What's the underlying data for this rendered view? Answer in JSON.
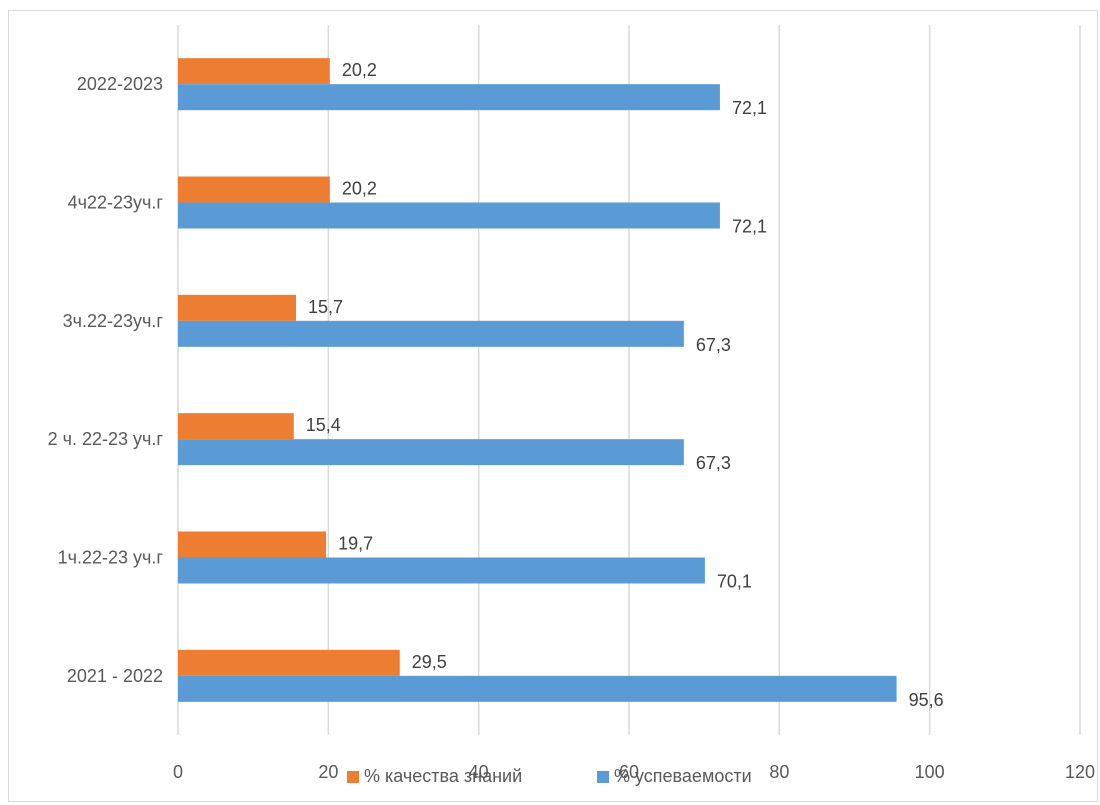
{
  "chart_data": {
    "type": "bar",
    "orientation": "horizontal",
    "categories": [
      "2021 - 2022",
      "1ч.22-23 уч.г",
      "2 ч. 22-23 уч.г",
      "3ч.22-23уч.г",
      "4ч22-23уч.г",
      "2022-2023"
    ],
    "series": [
      {
        "name": "% качества знаний",
        "color": "#ED7D31",
        "values": [
          29.5,
          19.7,
          15.4,
          15.7,
          20.2,
          20.2
        ],
        "labels": [
          "29,5",
          "19,7",
          "15,4",
          "15,7",
          "20,2",
          "20,2"
        ]
      },
      {
        "name": "% успеваемости",
        "color": "#5B9BD5",
        "values": [
          95.6,
          70.1,
          67.3,
          67.3,
          72.1,
          72.1
        ],
        "labels": [
          "95,6",
          "70,1",
          "67,3",
          "67,3",
          "72,1",
          "72,1"
        ]
      }
    ],
    "xlim": [
      0,
      120
    ],
    "x_ticks": [
      0,
      20,
      40,
      60,
      80,
      100,
      120
    ],
    "grid": true,
    "legend_position": "bottom",
    "title": "",
    "xlabel": "",
    "ylabel": ""
  }
}
